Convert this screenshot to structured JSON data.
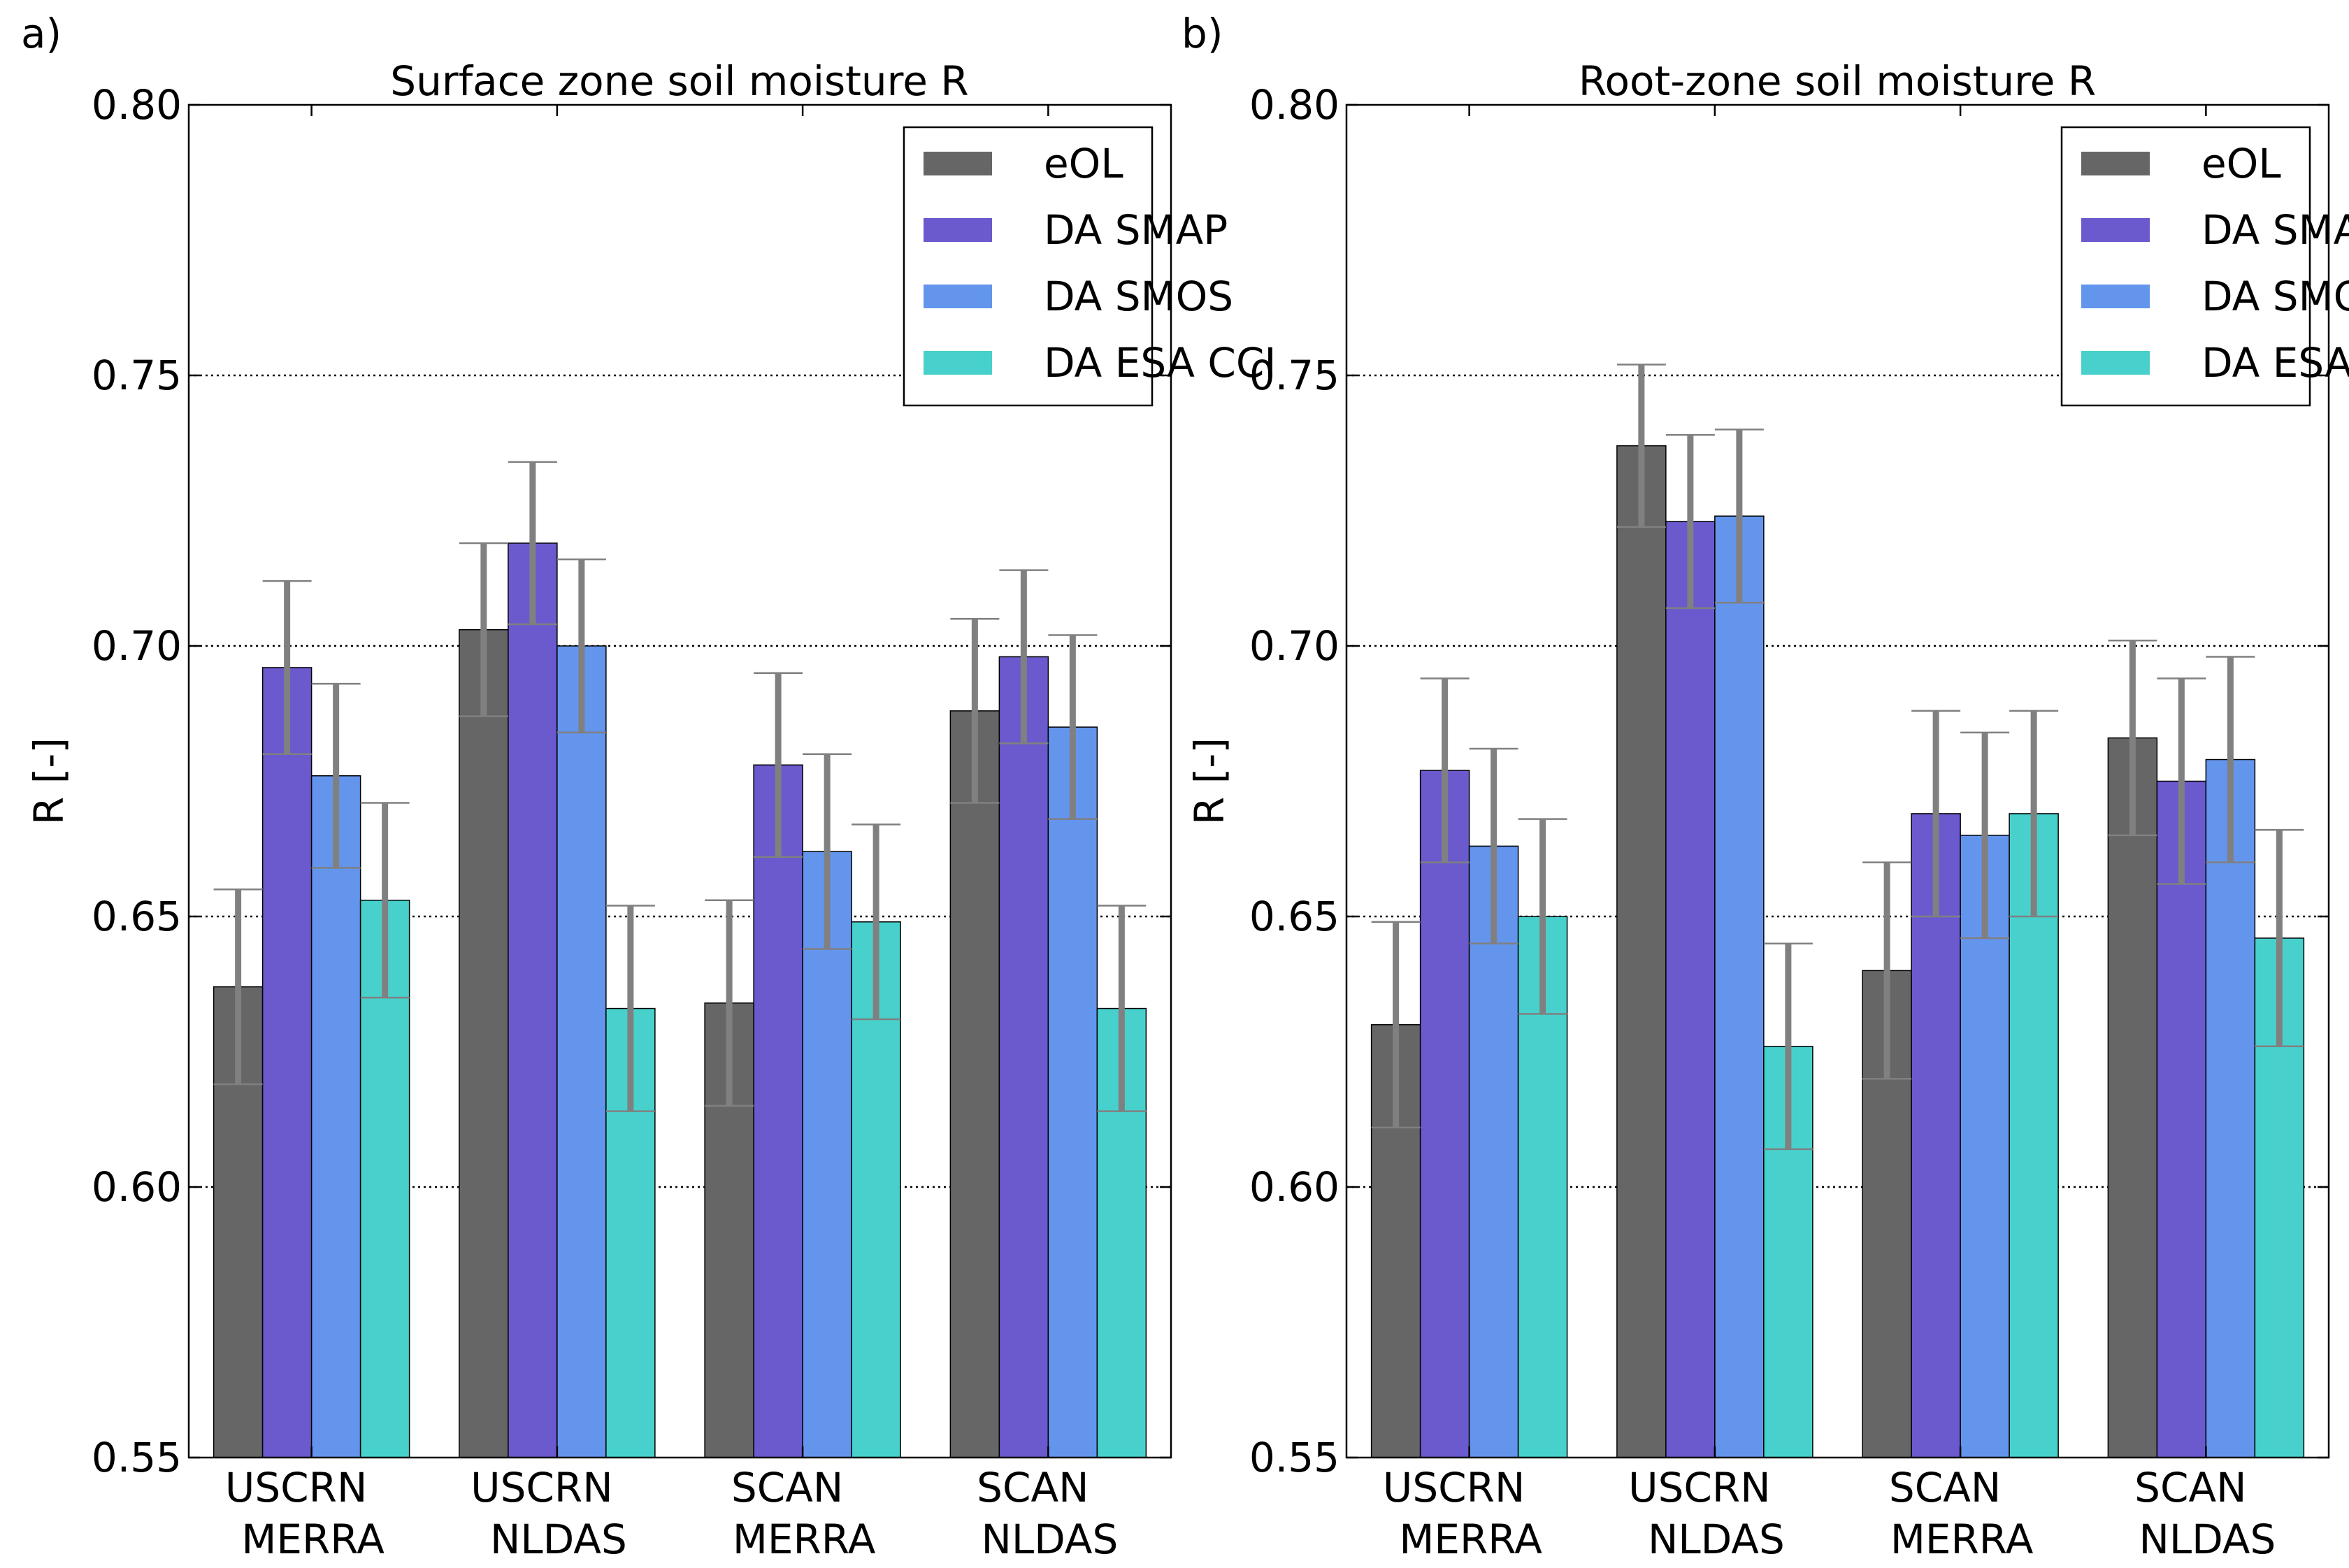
{
  "chart_data": [
    {
      "panel_label": "a)",
      "type": "bar",
      "title": "Surface zone soil moisture R",
      "ylabel": "R [-]",
      "xlabel": "",
      "ylim": [
        0.55,
        0.8
      ],
      "yticks": [
        "0.55",
        "0.60",
        "0.65",
        "0.70",
        "0.75",
        "0.80"
      ],
      "ytick_values": [
        0.55,
        0.6,
        0.65,
        0.7,
        0.75,
        0.8
      ],
      "grid": "horizontal dotted",
      "legend_position": "top-right",
      "categories": [
        [
          "USCRN",
          "MERRA"
        ],
        [
          "USCRN",
          "NLDAS"
        ],
        [
          "SCAN",
          "MERRA"
        ],
        [
          "SCAN",
          "NLDAS"
        ]
      ],
      "series": [
        {
          "name": "eOL",
          "color": "#666666",
          "values": [
            0.637,
            0.703,
            0.634,
            0.688
          ],
          "err": [
            0.018,
            0.016,
            0.019,
            0.017
          ]
        },
        {
          "name": "DA SMAP",
          "color": "#6a5acd",
          "values": [
            0.696,
            0.719,
            0.678,
            0.698
          ],
          "err": [
            0.016,
            0.015,
            0.017,
            0.016
          ]
        },
        {
          "name": "DA SMOS",
          "color": "#6495ed",
          "values": [
            0.676,
            0.7,
            0.662,
            0.685
          ],
          "err": [
            0.017,
            0.016,
            0.018,
            0.017
          ]
        },
        {
          "name": "DA ESA CCI",
          "color": "#48d1cc",
          "values": [
            0.653,
            0.633,
            0.649,
            0.633
          ],
          "err": [
            0.018,
            0.019,
            0.018,
            0.019
          ]
        }
      ]
    },
    {
      "panel_label": "b)",
      "type": "bar",
      "title": "Root-zone soil moisture R",
      "ylabel": "R [-]",
      "xlabel": "",
      "ylim": [
        0.55,
        0.8
      ],
      "yticks": [
        "0.55",
        "0.60",
        "0.65",
        "0.70",
        "0.75",
        "0.80"
      ],
      "ytick_values": [
        0.55,
        0.6,
        0.65,
        0.7,
        0.75,
        0.8
      ],
      "grid": "horizontal dotted",
      "legend_position": "top-right",
      "categories": [
        [
          "USCRN",
          "MERRA"
        ],
        [
          "USCRN",
          "NLDAS"
        ],
        [
          "SCAN",
          "MERRA"
        ],
        [
          "SCAN",
          "NLDAS"
        ]
      ],
      "series": [
        {
          "name": "eOL",
          "color": "#666666",
          "values": [
            0.63,
            0.737,
            0.64,
            0.683
          ],
          "err": [
            0.019,
            0.015,
            0.02,
            0.018
          ]
        },
        {
          "name": "DA SMAP",
          "color": "#6a5acd",
          "values": [
            0.677,
            0.723,
            0.669,
            0.675
          ],
          "err": [
            0.017,
            0.016,
            0.019,
            0.019
          ]
        },
        {
          "name": "DA SMOS",
          "color": "#6495ed",
          "values": [
            0.663,
            0.724,
            0.665,
            0.679
          ],
          "err": [
            0.018,
            0.016,
            0.019,
            0.019
          ]
        },
        {
          "name": "DA ESA CCI",
          "color": "#48d1cc",
          "values": [
            0.65,
            0.626,
            0.669,
            0.646
          ],
          "err": [
            0.018,
            0.019,
            0.019,
            0.02
          ]
        }
      ]
    }
  ]
}
